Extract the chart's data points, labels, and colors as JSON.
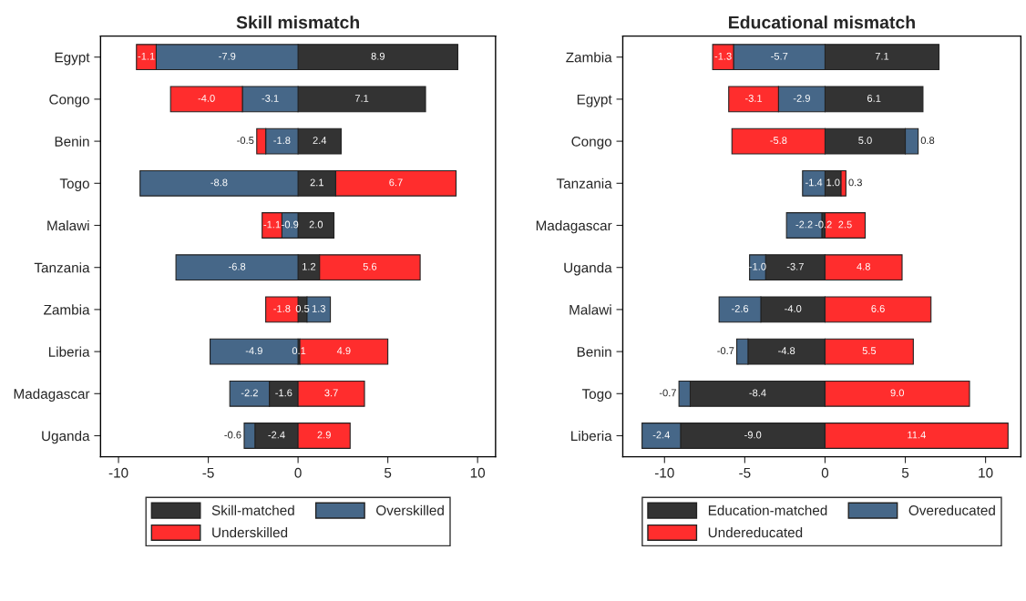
{
  "chart_data": [
    {
      "type": "bar",
      "orientation": "horizontal",
      "stacked": true,
      "title": "Skill mismatch",
      "categories": [
        "Egypt",
        "Congo",
        "Benin",
        "Togo",
        "Malawi",
        "Tanzania",
        "Zambia",
        "Liberia",
        "Madagascar",
        "Uganda"
      ],
      "series": [
        {
          "name": "Skill-matched",
          "color": "#333333",
          "values": [
            8.9,
            7.1,
            2.4,
            2.1,
            2.0,
            1.2,
            0.5,
            0.1,
            -1.6,
            -2.4
          ],
          "value_labels": [
            "8.9",
            "7.1",
            "2.4",
            "2.1",
            "2.0",
            "1.2",
            "0.5",
            "0.1",
            "-1.6",
            "-2.4"
          ]
        },
        {
          "name": "Overskilled",
          "color": "#466788",
          "values": [
            -7.9,
            -3.1,
            -1.8,
            -8.8,
            -0.9,
            -6.8,
            1.3,
            -4.9,
            -2.2,
            -0.6
          ],
          "value_labels": [
            "-7.9",
            "-3.1",
            "-1.8",
            "-8.8",
            "-0.9",
            "-6.8",
            "1.3",
            "-4.9",
            "-2.2",
            "-0.6"
          ]
        },
        {
          "name": "Underskilled",
          "color": "#ff2d2d",
          "values": [
            -1.1,
            -4.0,
            -0.5,
            6.7,
            -1.1,
            5.6,
            -1.8,
            4.9,
            3.7,
            2.9
          ],
          "value_labels": [
            "-1.1",
            "-4.0",
            "-0.5",
            "6.7",
            "-1.1",
            "5.6",
            "-1.8",
            "4.9",
            "3.7",
            "2.9"
          ]
        }
      ],
      "xlim": [
        -11,
        11
      ],
      "xticks": [
        -10,
        -5,
        0,
        5,
        10
      ],
      "grid": false,
      "legend": "bottom"
    },
    {
      "type": "bar",
      "orientation": "horizontal",
      "stacked": true,
      "title": "Educational mismatch",
      "categories": [
        "Zambia",
        "Egypt",
        "Congo",
        "Tanzania",
        "Madagascar",
        "Uganda",
        "Malawi",
        "Benin",
        "Togo",
        "Liberia"
      ],
      "series": [
        {
          "name": "Education-matched",
          "color": "#333333",
          "values": [
            7.1,
            6.1,
            5.0,
            1.0,
            -0.2,
            -3.7,
            -4.0,
            -4.8,
            -8.4,
            -9.0
          ],
          "value_labels": [
            "7.1",
            "6.1",
            "5.0",
            "1.0",
            "-0.2",
            "-3.7",
            "-4.0",
            "-4.8",
            "-8.4",
            "-9.0"
          ]
        },
        {
          "name": "Overeducated",
          "color": "#466788",
          "values": [
            -5.7,
            -2.9,
            0.8,
            -1.4,
            -2.2,
            -1.0,
            -2.6,
            -0.7,
            -0.7,
            -2.4
          ],
          "value_labels": [
            "-5.7",
            "-2.9",
            "0.8",
            "-1.4",
            "-2.2",
            "-1.0",
            "-2.6",
            "-0.7",
            "-0.7",
            "-2.4"
          ]
        },
        {
          "name": "Undereducated",
          "color": "#ff2d2d",
          "values": [
            -1.3,
            -3.1,
            -5.8,
            0.3,
            2.5,
            4.8,
            6.6,
            5.5,
            9.0,
            11.4
          ],
          "value_labels": [
            "-1.3",
            "-3.1",
            "-5.8",
            "0.3",
            "2.5",
            "4.8",
            "6.6",
            "5.5",
            "9.0",
            "11.4"
          ]
        }
      ],
      "xlim": [
        -12.6,
        12.2
      ],
      "xticks": [
        -10,
        -5,
        0,
        5,
        10
      ],
      "grid": false,
      "legend": "bottom"
    }
  ]
}
